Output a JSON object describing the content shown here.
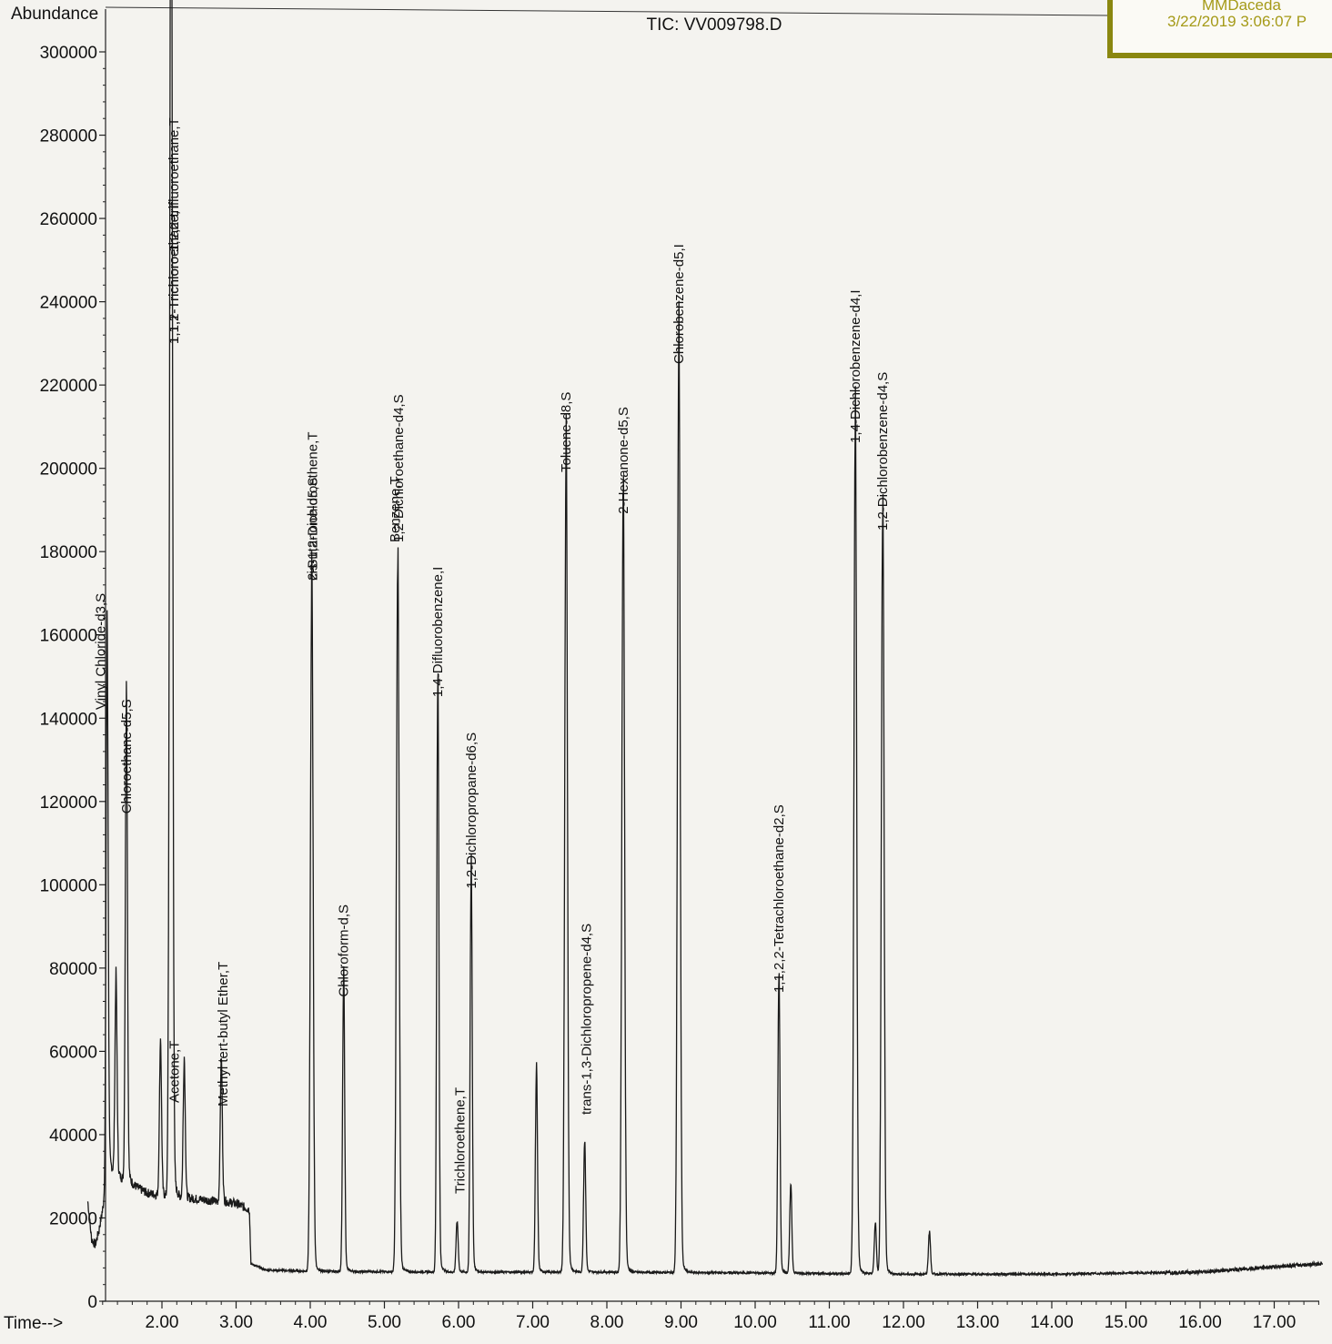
{
  "chart_data": {
    "type": "line",
    "title": "TIC: VV009798.D",
    "ylabel": "Abundance",
    "xlabel": "Time-->",
    "xlim": [
      1.0,
      17.65
    ],
    "ylim": [
      0,
      310000
    ],
    "x_ticks": [
      "2.00",
      "3.00",
      "4.00",
      "5.00",
      "6.00",
      "7.00",
      "8.00",
      "9.00",
      "10.00",
      "11.00",
      "12.00",
      "13.00",
      "14.00",
      "15.00",
      "16.00",
      "17.00"
    ],
    "y_ticks": [
      "0",
      "20000",
      "40000",
      "60000",
      "80000",
      "100000",
      "120000",
      "140000",
      "160000",
      "180000",
      "200000",
      "220000",
      "240000",
      "260000",
      "280000",
      "300000"
    ],
    "grid": false,
    "baseline": [
      {
        "x": 1.0,
        "y": 24000
      },
      {
        "x": 1.05,
        "y": 15000
      },
      {
        "x": 1.1,
        "y": 13500
      },
      {
        "x": 1.15,
        "y": 17000
      },
      {
        "x": 1.2,
        "y": 22000
      },
      {
        "x": 1.28,
        "y": 32000
      },
      {
        "x": 1.4,
        "y": 30000
      },
      {
        "x": 1.6,
        "y": 28000
      },
      {
        "x": 1.8,
        "y": 26000
      },
      {
        "x": 2.1,
        "y": 25000
      },
      {
        "x": 2.5,
        "y": 24500
      },
      {
        "x": 3.0,
        "y": 23500
      },
      {
        "x": 3.18,
        "y": 22000
      },
      {
        "x": 3.2,
        "y": 9000
      },
      {
        "x": 3.4,
        "y": 7500
      },
      {
        "x": 4.0,
        "y": 7200
      },
      {
        "x": 6.0,
        "y": 7000
      },
      {
        "x": 8.0,
        "y": 7000
      },
      {
        "x": 10.0,
        "y": 6800
      },
      {
        "x": 12.0,
        "y": 6500
      },
      {
        "x": 14.0,
        "y": 6500
      },
      {
        "x": 16.0,
        "y": 7000
      },
      {
        "x": 16.8,
        "y": 8000
      },
      {
        "x": 17.6,
        "y": 9000
      }
    ],
    "peaks": [
      {
        "rt": 1.26,
        "height": 128000,
        "label": "Vinyl Chloride-d3,S"
      },
      {
        "rt": 1.38,
        "height": 46000,
        "label": ""
      },
      {
        "rt": 1.52,
        "height": 114000,
        "label": "Chloroethane-d5,S"
      },
      {
        "rt": 1.98,
        "height": 36000,
        "label": ""
      },
      {
        "rt": 2.12,
        "height": 312000,
        "label": "1,1,2-Trichloro-1,2,2-trifluoroethane,T"
      },
      {
        "rt": 2.14,
        "height": 60000,
        "label": "Acetone,T"
      },
      {
        "rt": 2.3,
        "height": 32000,
        "label": ""
      },
      {
        "rt": 2.8,
        "height": 33000,
        "label": "Methyl tert-butyl Ether,T"
      },
      {
        "rt": 4.02,
        "height": 163000,
        "label": "2-Butanone-d5,S"
      },
      {
        "rt": 4.45,
        "height": 70000,
        "label": "Chloroform-d,S"
      },
      {
        "rt": 5.18,
        "height": 169000,
        "label": "1,2-Dichloroethane-d4,S"
      },
      {
        "rt": 5.72,
        "height": 142000,
        "label": "1,4-Difluorobenzene,I"
      },
      {
        "rt": 5.98,
        "height": 12000,
        "label": "Trichloroethene,T"
      },
      {
        "rt": 6.17,
        "height": 96000,
        "label": "1,2-Dichloropropane-d6,S"
      },
      {
        "rt": 7.05,
        "height": 48000,
        "label": ""
      },
      {
        "rt": 7.45,
        "height": 196000,
        "label": "Toluene-d8,S"
      },
      {
        "rt": 7.7,
        "height": 31000,
        "label": "trans-1,3-Dichloropropene-d4,S"
      },
      {
        "rt": 8.22,
        "height": 186000,
        "label": "2-Hexanone-d5,S"
      },
      {
        "rt": 8.97,
        "height": 222000,
        "label": "Chlorobenzene-d5,I"
      },
      {
        "rt": 10.32,
        "height": 71000,
        "label": "1,1,2,2-Tetrachloroethane-d2,S"
      },
      {
        "rt": 10.48,
        "height": 21000,
        "label": ""
      },
      {
        "rt": 11.35,
        "height": 203000,
        "label": "1,4-Dichlorobenzene-d4,I"
      },
      {
        "rt": 11.62,
        "height": 12000,
        "label": ""
      },
      {
        "rt": 11.72,
        "height": 182000,
        "label": "1,2-Dichlorobenzene-d4,S"
      },
      {
        "rt": 12.35,
        "height": 10000,
        "label": ""
      }
    ],
    "label_overlaps": [
      {
        "near_rt": 2.12,
        "text": "1,1,1-Trichloroethane,T"
      },
      {
        "near_rt": 4.02,
        "text": "cis-1,2-Dichloroethene,T"
      },
      {
        "near_rt": 5.18,
        "text": "Benzene,T"
      }
    ]
  },
  "stamp": {
    "name": "MMDaceda",
    "date": "3/22/2019 3:06:07 P"
  }
}
